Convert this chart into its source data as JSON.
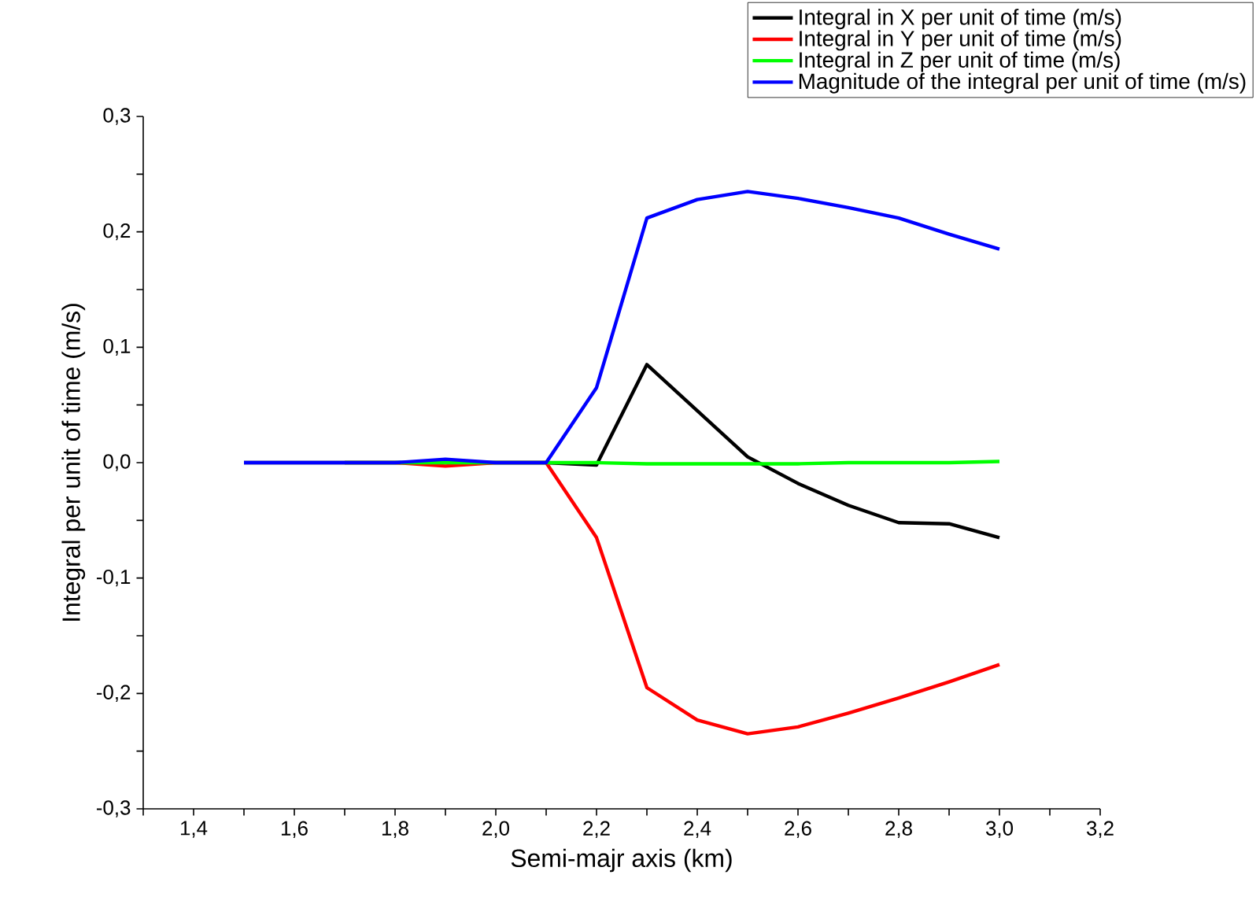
{
  "chart_data": {
    "type": "line",
    "xlabel": "Semi-majr axis (km)",
    "ylabel": "Integral per unit of time (m/s)",
    "x": [
      1.5,
      1.6,
      1.7,
      1.8,
      1.9,
      2.0,
      2.1,
      2.2,
      2.3,
      2.4,
      2.5,
      2.6,
      2.7,
      2.8,
      2.9,
      3.0
    ],
    "series": [
      {
        "name": "Integral in X per unit of time (m/s)",
        "color": "#000000",
        "values": [
          0,
          0,
          0,
          0,
          0,
          0,
          0,
          -0.002,
          0.085,
          0.045,
          0.005,
          -0.018,
          -0.037,
          -0.052,
          -0.053,
          -0.065
        ]
      },
      {
        "name": "Integral in Y per unit of time (m/s)",
        "color": "#ff0000",
        "values": [
          null,
          null,
          0,
          0,
          -0.003,
          0,
          0,
          -0.065,
          -0.195,
          -0.223,
          -0.235,
          -0.229,
          -0.217,
          -0.204,
          -0.19,
          -0.175
        ]
      },
      {
        "name": "Integral in Z per unit of time (m/s)",
        "color": "#00ff00",
        "values": [
          null,
          null,
          0,
          0,
          0,
          0,
          0,
          0,
          -0.001,
          -0.001,
          -0.001,
          -0.001,
          0,
          0,
          0,
          0.001
        ]
      },
      {
        "name": "Magnitude of the integral per unit of time (m/s)",
        "color": "#0000ff",
        "values": [
          0,
          0,
          0,
          0,
          0.003,
          0,
          0,
          0.065,
          0.212,
          0.228,
          0.235,
          0.229,
          0.221,
          0.212,
          0.198,
          0.185
        ]
      }
    ],
    "xlim": [
      1.3,
      3.2
    ],
    "xticks": [
      {
        "value": 1.3,
        "label": null
      },
      {
        "value": 1.4,
        "label": "1,4"
      },
      {
        "value": 1.5,
        "label": null
      },
      {
        "value": 1.6,
        "label": "1,6"
      },
      {
        "value": 1.7,
        "label": null
      },
      {
        "value": 1.8,
        "label": "1,8"
      },
      {
        "value": 1.9,
        "label": null
      },
      {
        "value": 2.0,
        "label": "2,0"
      },
      {
        "value": 2.1,
        "label": null
      },
      {
        "value": 2.2,
        "label": "2,2"
      },
      {
        "value": 2.3,
        "label": null
      },
      {
        "value": 2.4,
        "label": "2,4"
      },
      {
        "value": 2.5,
        "label": null
      },
      {
        "value": 2.6,
        "label": "2,6"
      },
      {
        "value": 2.7,
        "label": null
      },
      {
        "value": 2.8,
        "label": "2,8"
      },
      {
        "value": 2.9,
        "label": null
      },
      {
        "value": 3.0,
        "label": "3,0"
      },
      {
        "value": 3.1,
        "label": null
      },
      {
        "value": 3.2,
        "label": "3,2"
      }
    ],
    "ylim": [
      -0.3,
      0.3
    ],
    "yticks": [
      {
        "value": -0.3,
        "label": "-0,3"
      },
      {
        "value": -0.25,
        "label": null
      },
      {
        "value": -0.2,
        "label": "-0,2"
      },
      {
        "value": -0.15,
        "label": null
      },
      {
        "value": -0.1,
        "label": "-0,1"
      },
      {
        "value": -0.05,
        "label": null
      },
      {
        "value": 0,
        "label": "0,0"
      },
      {
        "value": 0.05,
        "label": null
      },
      {
        "value": 0.1,
        "label": "0,1"
      },
      {
        "value": 0.15,
        "label": null
      },
      {
        "value": 0.2,
        "label": "0,2"
      },
      {
        "value": 0.25,
        "label": null
      },
      {
        "value": 0.3,
        "label": "0,3"
      }
    ],
    "legend": "top right"
  }
}
